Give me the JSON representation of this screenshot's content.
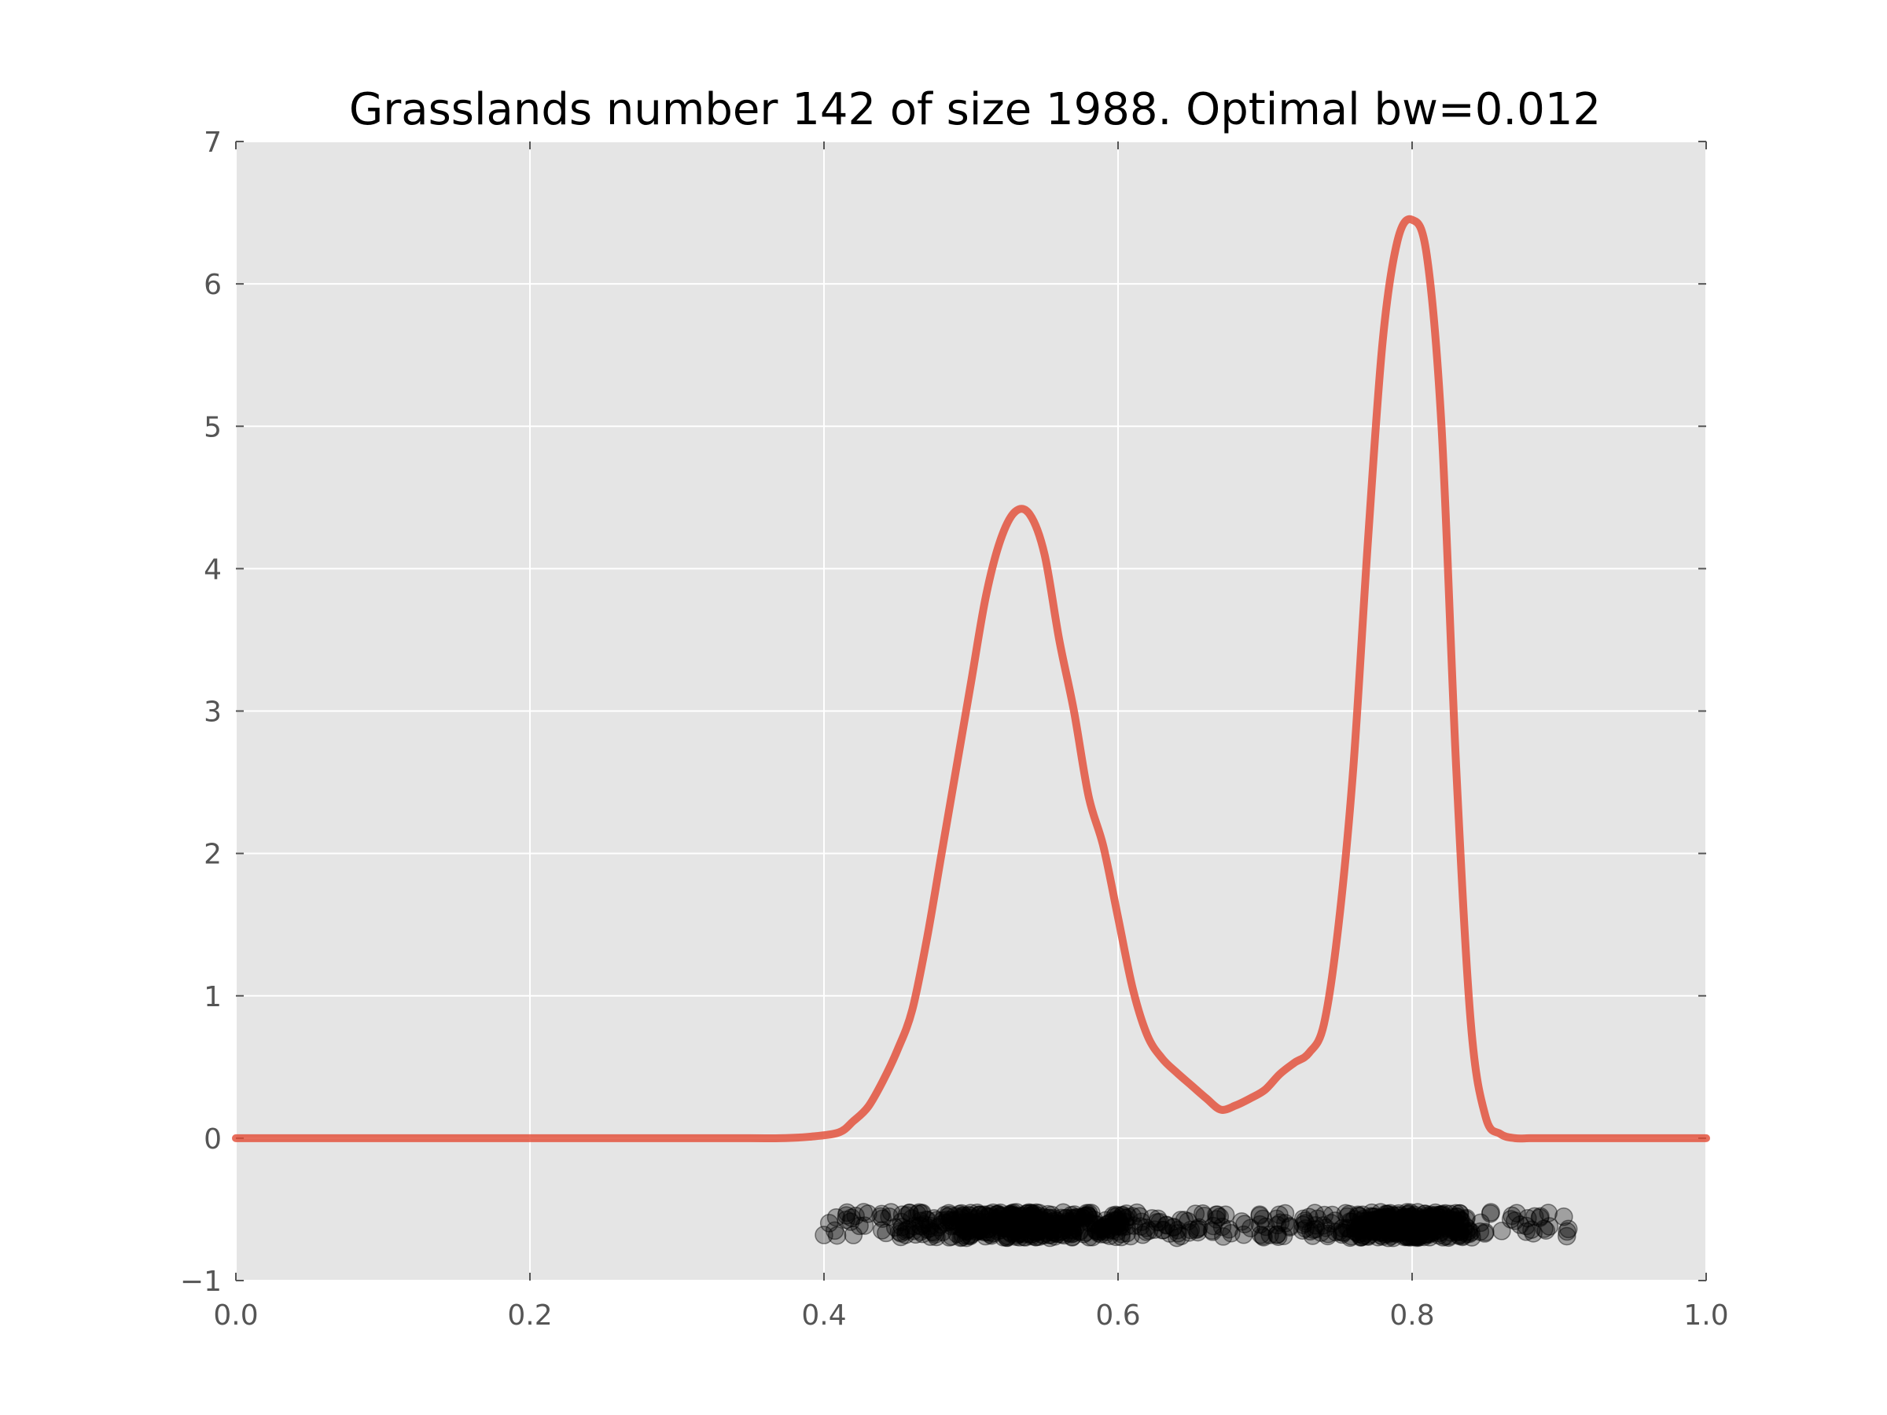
{
  "chart_data": {
    "type": "line",
    "title": "Grasslands number 142 of size 1988. Optimal bw=0.012",
    "xlabel": "",
    "ylabel": "",
    "xlim": [
      0.0,
      1.0
    ],
    "ylim": [
      -1,
      7
    ],
    "grid": true,
    "x_ticks": [
      "0.0",
      "0.2",
      "0.4",
      "0.6",
      "0.8",
      "1.0"
    ],
    "x_tick_values": [
      0.0,
      0.2,
      0.4,
      0.6,
      0.8,
      1.0
    ],
    "y_ticks": [
      "−1",
      "0",
      "1",
      "2",
      "3",
      "4",
      "5",
      "6",
      "7"
    ],
    "y_tick_values": [
      -1,
      0,
      1,
      2,
      3,
      4,
      5,
      6,
      7
    ],
    "colors": {
      "density": "#e24a33",
      "background": "#e5e5e5",
      "grid": "#ffffff",
      "points": "#000000"
    },
    "series": [
      {
        "type": "line",
        "x": [
          0.0,
          0.1,
          0.2,
          0.3,
          0.35,
          0.37,
          0.39,
          0.41,
          0.42,
          0.43,
          0.44,
          0.45,
          0.46,
          0.47,
          0.48,
          0.49,
          0.5,
          0.51,
          0.52,
          0.53,
          0.54,
          0.55,
          0.56,
          0.57,
          0.58,
          0.59,
          0.6,
          0.61,
          0.62,
          0.63,
          0.64,
          0.65,
          0.66,
          0.67,
          0.68,
          0.69,
          0.7,
          0.71,
          0.72,
          0.73,
          0.74,
          0.75,
          0.76,
          0.77,
          0.78,
          0.79,
          0.8,
          0.81,
          0.82,
          0.83,
          0.84,
          0.85,
          0.86,
          0.87,
          0.88,
          0.89,
          0.9,
          0.91,
          0.92,
          0.93,
          0.94,
          0.95,
          1.0
        ],
        "y": [
          0.0,
          0.0,
          0.0,
          0.0,
          0.0,
          0.0,
          0.01,
          0.04,
          0.12,
          0.22,
          0.4,
          0.62,
          0.9,
          1.4,
          2.0,
          2.6,
          3.2,
          3.8,
          4.2,
          4.4,
          4.38,
          4.1,
          3.5,
          3.0,
          2.4,
          2.05,
          1.55,
          1.05,
          0.72,
          0.56,
          0.46,
          0.37,
          0.28,
          0.2,
          0.23,
          0.28,
          0.34,
          0.45,
          0.53,
          0.6,
          0.8,
          1.5,
          2.6,
          4.2,
          5.6,
          6.3,
          6.45,
          6.2,
          5.0,
          2.6,
          0.8,
          0.15,
          0.03,
          0.0,
          0.0,
          0.0,
          0.0,
          0.0,
          0.0,
          0.0,
          0.0,
          0.0,
          0.0
        ]
      },
      {
        "type": "scatter",
        "description": "data points jittered below zero",
        "x_range": [
          0.4,
          0.91
        ],
        "y_range": [
          -0.7,
          -0.52
        ],
        "count": 1988
      }
    ]
  }
}
